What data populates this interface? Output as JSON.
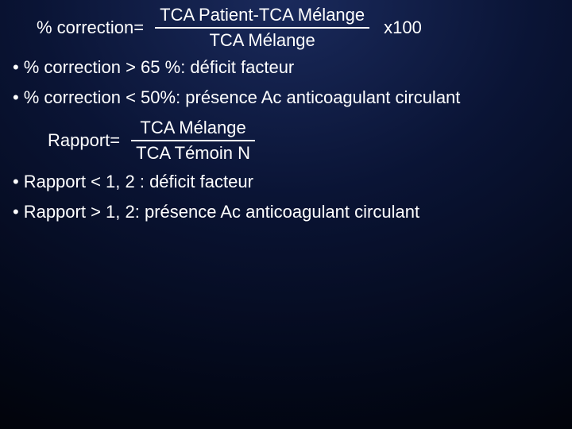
{
  "formula1": {
    "label": "% correction=",
    "numerator": "TCA Patient-TCA Mélange",
    "denominator": "TCA Mélange",
    "multiplier": "x100"
  },
  "bullets1": [
    "% correction > 65 %: déficit facteur",
    "% correction < 50%: présence Ac anticoagulant circulant"
  ],
  "formula2": {
    "label": "Rapport=",
    "numerator": "TCA Mélange",
    "denominator": "TCA Témoin N"
  },
  "bullets2": [
    "Rapport < 1, 2 : déficit facteur",
    "Rapport > 1, 2: présence Ac anticoagulant circulant"
  ],
  "bullet_char": "•"
}
